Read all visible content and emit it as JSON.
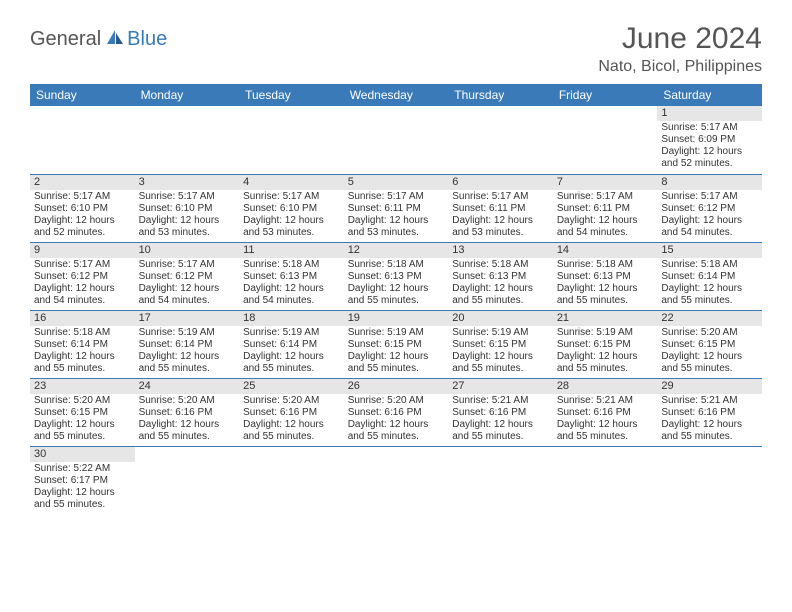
{
  "logo": {
    "text1": "General",
    "text2": "Blue"
  },
  "header": {
    "title": "June 2024",
    "location": "Nato, Bicol, Philippines"
  },
  "colors": {
    "header_bg": "#3a7ab8",
    "header_text": "#ffffff",
    "daynum_bg": "#e6e6e6",
    "text": "#333333",
    "title_text": "#555555",
    "row_border": "#3a7ab8"
  },
  "daysOfWeek": [
    "Sunday",
    "Monday",
    "Tuesday",
    "Wednesday",
    "Thursday",
    "Friday",
    "Saturday"
  ],
  "firstDayIndex": 6,
  "daysInMonth": 30,
  "days": {
    "1": {
      "sunrise": "5:17 AM",
      "sunset": "6:09 PM",
      "daylight": "12 hours and 52 minutes."
    },
    "2": {
      "sunrise": "5:17 AM",
      "sunset": "6:10 PM",
      "daylight": "12 hours and 52 minutes."
    },
    "3": {
      "sunrise": "5:17 AM",
      "sunset": "6:10 PM",
      "daylight": "12 hours and 53 minutes."
    },
    "4": {
      "sunrise": "5:17 AM",
      "sunset": "6:10 PM",
      "daylight": "12 hours and 53 minutes."
    },
    "5": {
      "sunrise": "5:17 AM",
      "sunset": "6:11 PM",
      "daylight": "12 hours and 53 minutes."
    },
    "6": {
      "sunrise": "5:17 AM",
      "sunset": "6:11 PM",
      "daylight": "12 hours and 53 minutes."
    },
    "7": {
      "sunrise": "5:17 AM",
      "sunset": "6:11 PM",
      "daylight": "12 hours and 54 minutes."
    },
    "8": {
      "sunrise": "5:17 AM",
      "sunset": "6:12 PM",
      "daylight": "12 hours and 54 minutes."
    },
    "9": {
      "sunrise": "5:17 AM",
      "sunset": "6:12 PM",
      "daylight": "12 hours and 54 minutes."
    },
    "10": {
      "sunrise": "5:17 AM",
      "sunset": "6:12 PM",
      "daylight": "12 hours and 54 minutes."
    },
    "11": {
      "sunrise": "5:18 AM",
      "sunset": "6:13 PM",
      "daylight": "12 hours and 54 minutes."
    },
    "12": {
      "sunrise": "5:18 AM",
      "sunset": "6:13 PM",
      "daylight": "12 hours and 55 minutes."
    },
    "13": {
      "sunrise": "5:18 AM",
      "sunset": "6:13 PM",
      "daylight": "12 hours and 55 minutes."
    },
    "14": {
      "sunrise": "5:18 AM",
      "sunset": "6:13 PM",
      "daylight": "12 hours and 55 minutes."
    },
    "15": {
      "sunrise": "5:18 AM",
      "sunset": "6:14 PM",
      "daylight": "12 hours and 55 minutes."
    },
    "16": {
      "sunrise": "5:18 AM",
      "sunset": "6:14 PM",
      "daylight": "12 hours and 55 minutes."
    },
    "17": {
      "sunrise": "5:19 AM",
      "sunset": "6:14 PM",
      "daylight": "12 hours and 55 minutes."
    },
    "18": {
      "sunrise": "5:19 AM",
      "sunset": "6:14 PM",
      "daylight": "12 hours and 55 minutes."
    },
    "19": {
      "sunrise": "5:19 AM",
      "sunset": "6:15 PM",
      "daylight": "12 hours and 55 minutes."
    },
    "20": {
      "sunrise": "5:19 AM",
      "sunset": "6:15 PM",
      "daylight": "12 hours and 55 minutes."
    },
    "21": {
      "sunrise": "5:19 AM",
      "sunset": "6:15 PM",
      "daylight": "12 hours and 55 minutes."
    },
    "22": {
      "sunrise": "5:20 AM",
      "sunset": "6:15 PM",
      "daylight": "12 hours and 55 minutes."
    },
    "23": {
      "sunrise": "5:20 AM",
      "sunset": "6:15 PM",
      "daylight": "12 hours and 55 minutes."
    },
    "24": {
      "sunrise": "5:20 AM",
      "sunset": "6:16 PM",
      "daylight": "12 hours and 55 minutes."
    },
    "25": {
      "sunrise": "5:20 AM",
      "sunset": "6:16 PM",
      "daylight": "12 hours and 55 minutes."
    },
    "26": {
      "sunrise": "5:20 AM",
      "sunset": "6:16 PM",
      "daylight": "12 hours and 55 minutes."
    },
    "27": {
      "sunrise": "5:21 AM",
      "sunset": "6:16 PM",
      "daylight": "12 hours and 55 minutes."
    },
    "28": {
      "sunrise": "5:21 AM",
      "sunset": "6:16 PM",
      "daylight": "12 hours and 55 minutes."
    },
    "29": {
      "sunrise": "5:21 AM",
      "sunset": "6:16 PM",
      "daylight": "12 hours and 55 minutes."
    },
    "30": {
      "sunrise": "5:22 AM",
      "sunset": "6:17 PM",
      "daylight": "12 hours and 55 minutes."
    }
  },
  "labels": {
    "sunrise": "Sunrise: ",
    "sunset": "Sunset: ",
    "daylight": "Daylight: "
  }
}
